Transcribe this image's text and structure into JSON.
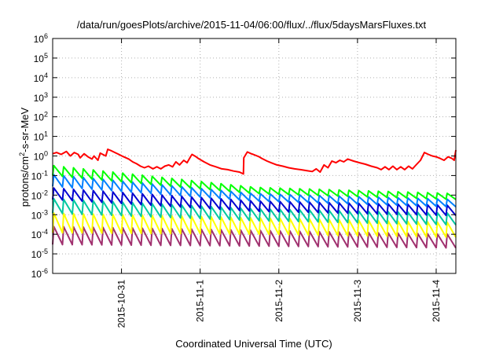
{
  "chart_data": {
    "type": "line",
    "title": "/data/run/goesPlots/archive/2015-11-04/06:00/flux/../flux/5daysMarsFluxes.txt",
    "xlabel": "Coordinated Universal Time (UTC)",
    "ylabel": {
      "base": "protons/cm",
      "sup": "2",
      "rest": "-s-sr-MeV"
    },
    "yscale": "log",
    "ylim": [
      1e-06,
      1000000.0
    ],
    "y_ticks": [
      {
        "exp": "-6",
        "value": 1e-06
      },
      {
        "exp": "-5",
        "value": 1e-05
      },
      {
        "exp": "-4",
        "value": 0.0001
      },
      {
        "exp": "-3",
        "value": 0.001
      },
      {
        "exp": "-2",
        "value": 0.01
      },
      {
        "exp": "-1",
        "value": 0.1
      },
      {
        "exp": "0",
        "value": 1
      },
      {
        "exp": "1",
        "value": 10
      },
      {
        "exp": "2",
        "value": 100
      },
      {
        "exp": "3",
        "value": 1000
      },
      {
        "exp": "4",
        "value": 10000
      },
      {
        "exp": "5",
        "value": 100000
      },
      {
        "exp": "6",
        "value": 1000000
      }
    ],
    "xlim": [
      "2015-10-30T03:00",
      "2015-11-04T06:00"
    ],
    "x_ticks": [
      "2015-10-31",
      "2015-11-1",
      "2015-11-2",
      "2015-11-3",
      "2015-11-4"
    ],
    "x_tick_dates": [
      "2015-10-31",
      "2015-11-01",
      "2015-11-02",
      "2015-11-03",
      "2015-11-04"
    ],
    "grid": true,
    "series": [
      {
        "color": "#ff0000",
        "kind": "smooth",
        "x": [
          "2015-10-30T03:00",
          "2015-10-30T04:12",
          "2015-10-30T05:36",
          "2015-10-30T07:12",
          "2015-10-30T08:24",
          "2015-10-30T09:36",
          "2015-10-30T10:48",
          "2015-10-30T11:24",
          "2015-10-30T12:36",
          "2015-10-30T13:48",
          "2015-10-30T15:00",
          "2015-10-30T15:36",
          "2015-10-30T16:48",
          "2015-10-30T17:30",
          "2015-10-30T19:12",
          "2015-10-30T19:48",
          "2015-10-30T21:00",
          "2015-10-30T22:00",
          "2015-10-30T23:12",
          "2015-10-31T00:24",
          "2015-10-31T02:12",
          "2015-10-31T03:24",
          "2015-10-31T04:36",
          "2015-10-31T05:48",
          "2015-10-31T07:00",
          "2015-10-31T08:12",
          "2015-10-31T09:36",
          "2015-10-31T10:48",
          "2015-10-31T12:00",
          "2015-10-31T13:12",
          "2015-10-31T14:24",
          "2015-10-31T15:36",
          "2015-10-31T16:36",
          "2015-10-31T17:42",
          "2015-10-31T19:00",
          "2015-10-31T20:00",
          "2015-10-31T21:12",
          "2015-10-31T21:30",
          "2015-10-31T22:36",
          "2015-10-31T23:24",
          "2015-11-01T01:12",
          "2015-11-01T03:00",
          "2015-11-01T04:48",
          "2015-11-01T06:36",
          "2015-11-01T08:24",
          "2015-11-01T10:12",
          "2015-11-01T12:00",
          "2015-11-01T13:12",
          "2015-11-01T13:18",
          "2015-11-01T14:24",
          "2015-11-01T15:36",
          "2015-11-01T16:12",
          "2015-11-01T18:00",
          "2015-11-01T18:48",
          "2015-11-01T20:24",
          "2015-11-01T21:36",
          "2015-11-01T23:24",
          "2015-11-02T01:12",
          "2015-11-02T03:00",
          "2015-11-02T04:48",
          "2015-11-02T06:36",
          "2015-11-02T08:24",
          "2015-11-02T10:12",
          "2015-11-02T11:24",
          "2015-11-02T12:36",
          "2015-11-02T13:48",
          "2015-11-02T15:00",
          "2015-11-02T16:12",
          "2015-11-02T17:24",
          "2015-11-02T18:36",
          "2015-11-02T19:48",
          "2015-11-02T21:00",
          "2015-11-02T22:48",
          "2015-11-03T00:36",
          "2015-11-03T02:24",
          "2015-11-03T04:12",
          "2015-11-03T06:00",
          "2015-11-03T07:12",
          "2015-11-03T08:24",
          "2015-11-03T09:36",
          "2015-11-03T10:48",
          "2015-11-03T12:00",
          "2015-11-03T13:12",
          "2015-11-03T14:24",
          "2015-11-03T15:36",
          "2015-11-03T16:48",
          "2015-11-03T17:30",
          "2015-11-03T19:12",
          "2015-11-03T20:24",
          "2015-11-03T21:36",
          "2015-11-03T22:48",
          "2015-11-04T00:00",
          "2015-11-04T01:12",
          "2015-11-04T02:24",
          "2015-11-04T03:36",
          "2015-11-04T04:48",
          "2015-11-04T05:30",
          "2015-11-04T06:00"
        ],
        "values": [
          1.3,
          1.5,
          1.2,
          1.7,
          1.0,
          1.5,
          1.2,
          0.8,
          1.3,
          0.9,
          0.7,
          1.0,
          0.6,
          1.4,
          1.0,
          2.2,
          1.8,
          1.5,
          1.2,
          0.95,
          0.7,
          0.5,
          0.4,
          0.3,
          0.25,
          0.3,
          0.22,
          0.28,
          0.22,
          0.3,
          0.35,
          0.28,
          0.5,
          0.35,
          0.6,
          0.45,
          1.0,
          1.2,
          0.95,
          0.75,
          0.5,
          0.35,
          0.28,
          0.22,
          0.2,
          0.17,
          0.15,
          0.12,
          0.8,
          1.6,
          1.3,
          1.2,
          0.9,
          0.75,
          0.55,
          0.45,
          0.35,
          0.3,
          0.25,
          0.22,
          0.2,
          0.18,
          0.16,
          0.22,
          0.15,
          0.35,
          0.25,
          0.55,
          0.45,
          0.6,
          0.5,
          0.7,
          0.55,
          0.45,
          0.38,
          0.3,
          0.25,
          0.2,
          0.28,
          0.2,
          0.3,
          0.2,
          0.28,
          0.2,
          0.3,
          0.22,
          0.3,
          0.6,
          1.5,
          1.2,
          1.0,
          0.9,
          0.75,
          0.6,
          0.9,
          0.75,
          0.6,
          2.0
        ]
      },
      {
        "color": "#00ff00",
        "kind": "sawtooth",
        "period_hours": 3,
        "peaks": [
          0.32,
          0.025,
          0.012
        ],
        "troughs": [
          0.1,
          0.012,
          0.006
        ]
      },
      {
        "color": "#0080ff",
        "kind": "sawtooth",
        "period_hours": 3,
        "peaks": [
          0.11,
          0.012,
          0.006
        ],
        "troughs": [
          0.028,
          0.005,
          0.0025
        ]
      },
      {
        "color": "#0000d0",
        "kind": "sawtooth",
        "period_hours": 3,
        "peaks": [
          0.023,
          0.005,
          0.003
        ],
        "troughs": [
          0.006,
          0.0015,
          0.0009
        ]
      },
      {
        "color": "#00c8a0",
        "kind": "sawtooth",
        "period_hours": 3,
        "peaks": [
          0.0065,
          0.002,
          0.0012
        ],
        "troughs": [
          0.0012,
          0.0005,
          0.0003
        ]
      },
      {
        "color": "#ffff00",
        "kind": "sawtooth",
        "period_hours": 3,
        "peaks": [
          0.0012,
          0.0007,
          0.0004
        ],
        "troughs": [
          0.00012,
          0.0001,
          7e-05
        ]
      },
      {
        "color": "#a0306e",
        "kind": "sawtooth",
        "period_hours": 3,
        "peaks": [
          0.00025,
          0.00016,
          0.0001
        ],
        "troughs": [
          3e-05,
          2.5e-05,
          2e-05
        ]
      }
    ]
  }
}
